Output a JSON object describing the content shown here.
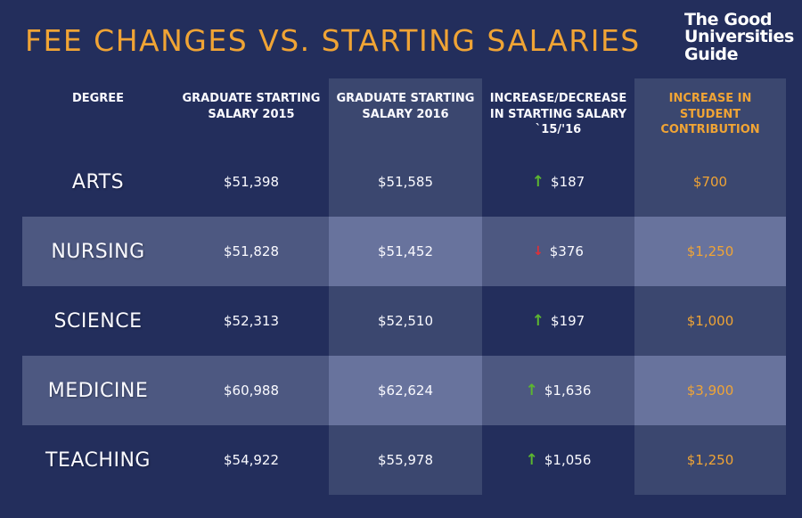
{
  "title": "FEE CHANGES VS. STARTING SALARIES",
  "logo": {
    "line1": "The Good",
    "line2": "Universities",
    "line3": "Guide"
  },
  "colors": {
    "background": "#232e5c",
    "accent_orange": "#f0a435",
    "column_highlight": "#3b476f",
    "row_highlight": "#4d5881",
    "row_column_highlight": "#68739d",
    "increase_green": "#5cb630",
    "decrease_red": "#e03038",
    "text_white": "#fafaff"
  },
  "chart_data": {
    "type": "table",
    "title": "FEE CHANGES VS. STARTING SALARIES",
    "columns": [
      "DEGREE",
      "GRADUATE STARTING SALARY 2015",
      "GRADUATE STARTING SALARY 2016",
      "INCREASE/DECREASE IN STARTING SALARY `15/'16",
      "INCREASE IN STUDENT CONTRIBUTION"
    ],
    "rows": [
      {
        "degree": "ARTS",
        "salary_2015": 51398,
        "salary_2016": 51585,
        "change": 187,
        "change_direction": "up",
        "student_contribution_increase": 700
      },
      {
        "degree": "NURSING",
        "salary_2015": 51828,
        "salary_2016": 51452,
        "change": 376,
        "change_direction": "down",
        "student_contribution_increase": 1250
      },
      {
        "degree": "SCIENCE",
        "salary_2015": 52313,
        "salary_2016": 52510,
        "change": 197,
        "change_direction": "up",
        "student_contribution_increase": 1000
      },
      {
        "degree": "MEDICINE",
        "salary_2015": 60988,
        "salary_2016": 62624,
        "change": 1636,
        "change_direction": "up",
        "student_contribution_increase": 3900
      },
      {
        "degree": "TEACHING",
        "salary_2015": 54922,
        "salary_2016": 55978,
        "change": 1056,
        "change_direction": "up",
        "student_contribution_increase": 1250
      }
    ]
  },
  "table": {
    "headers": {
      "degree": "DEGREE",
      "salary_2015": "GRADUATE STARTING SALARY 2015",
      "salary_2016": "GRADUATE STARTING SALARY 2016",
      "change": "INCREASE/DECREASE IN STARTING SALARY `15/'16",
      "contribution": "INCREASE IN STUDENT CONTRIBUTION"
    },
    "rows": [
      {
        "degree": "ARTS",
        "salary_2015": "$51,398",
        "salary_2016": "$51,585",
        "change_arrow": "↑",
        "change_direction": "up",
        "change_value": "$187",
        "contribution": "$700"
      },
      {
        "degree": "NURSING",
        "salary_2015": "$51,828",
        "salary_2016": "$51,452",
        "change_arrow": "↓",
        "change_direction": "down",
        "change_value": "$376",
        "contribution": "$1,250"
      },
      {
        "degree": "SCIENCE",
        "salary_2015": "$52,313",
        "salary_2016": "$52,510",
        "change_arrow": "↑",
        "change_direction": "up",
        "change_value": "$197",
        "contribution": "$1,000"
      },
      {
        "degree": "MEDICINE",
        "salary_2015": "$60,988",
        "salary_2016": "$62,624",
        "change_arrow": "↑",
        "change_direction": "up",
        "change_value": "$1,636",
        "contribution": "$3,900"
      },
      {
        "degree": "TEACHING",
        "salary_2015": "$54,922",
        "salary_2016": "$55,978",
        "change_arrow": "↑",
        "change_direction": "up",
        "change_value": "$1,056",
        "contribution": "$1,250"
      }
    ]
  }
}
